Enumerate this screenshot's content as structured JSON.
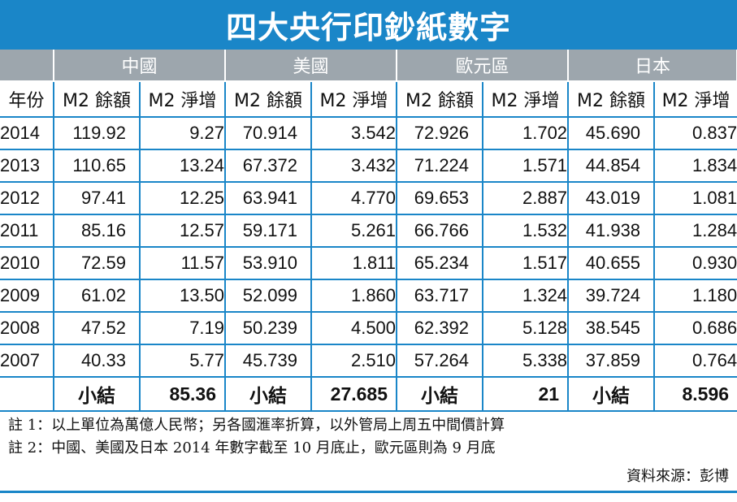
{
  "title": "四大央行印鈔紙數字",
  "regions": [
    "中國",
    "美國",
    "歐元區",
    "日本"
  ],
  "subheaders": {
    "year": "年份",
    "balance": "M2 餘額",
    "increase": "M2 淨增"
  },
  "rows": [
    {
      "year": "2014",
      "values": [
        "119.92",
        "9.27",
        "70.914",
        "3.542",
        "72.926",
        "1.702",
        "45.690",
        "0.837"
      ]
    },
    {
      "year": "2013",
      "values": [
        "110.65",
        "13.24",
        "67.372",
        "3.432",
        "71.224",
        "1.571",
        "44.854",
        "1.834"
      ]
    },
    {
      "year": "2012",
      "values": [
        "97.41",
        "12.25",
        "63.941",
        "4.770",
        "69.653",
        "2.887",
        "43.019",
        "1.081"
      ]
    },
    {
      "year": "2011",
      "values": [
        "85.16",
        "12.57",
        "59.171",
        "5.261",
        "66.766",
        "1.532",
        "41.938",
        "1.284"
      ]
    },
    {
      "year": "2010",
      "values": [
        "72.59",
        "11.57",
        "53.910",
        "1.811",
        "65.234",
        "1.517",
        "40.655",
        "0.930"
      ]
    },
    {
      "year": "2009",
      "values": [
        "61.02",
        "13.50",
        "52.099",
        "1.860",
        "63.717",
        "1.324",
        "39.724",
        "1.180"
      ]
    },
    {
      "year": "2008",
      "values": [
        "47.52",
        "7.19",
        "50.239",
        "4.500",
        "62.392",
        "5.128",
        "38.545",
        "0.686"
      ]
    },
    {
      "year": "2007",
      "values": [
        "40.33",
        "5.77",
        "45.739",
        "2.510",
        "57.264",
        "5.338",
        "37.859",
        "0.764"
      ]
    }
  ],
  "totals": {
    "label": "小結",
    "values": [
      "85.36",
      "27.685",
      "21",
      "8.596"
    ]
  },
  "notes": [
    "註 1：以上單位為萬億人民幣；另各國滙率折算，以外管局上周五中間價計算",
    "註 2：中國、美國及日本 2014 年數字截至 10 月底止，歐元區則為 9 月底"
  ],
  "source": "資料來源：彭博",
  "colors": {
    "accent": "#1a86c8",
    "region_header": "#9da6ad"
  }
}
